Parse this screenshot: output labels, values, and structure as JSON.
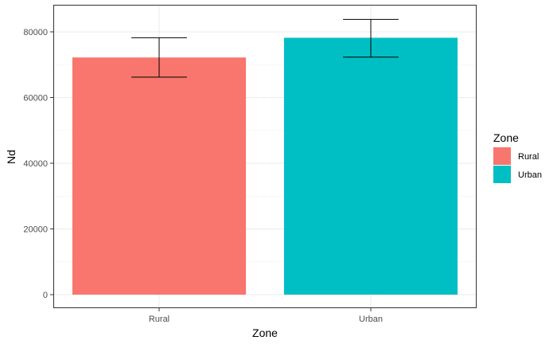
{
  "chart_data": {
    "type": "bar",
    "categories": [
      "Rural",
      "Urban"
    ],
    "values": [
      72200,
      78200
    ],
    "error_bars": [
      {
        "low": 66200,
        "high": 78200
      },
      {
        "low": 72300,
        "high": 83800
      }
    ],
    "xlabel": "Zone",
    "ylabel": "Nd",
    "ylim": [
      0,
      86000
    ],
    "yticks": [
      0,
      20000,
      40000,
      60000,
      80000
    ],
    "ytick_labels": [
      "0",
      "20000",
      "40000",
      "60000",
      "80000"
    ],
    "grid": true,
    "legend": {
      "title": "Zone",
      "placement": "right",
      "items": [
        {
          "label": "Rural",
          "color": "#F8766D"
        },
        {
          "label": "Urban",
          "color": "#00BFC4"
        }
      ]
    },
    "colors": [
      "#F8766D",
      "#00BFC4"
    ]
  }
}
